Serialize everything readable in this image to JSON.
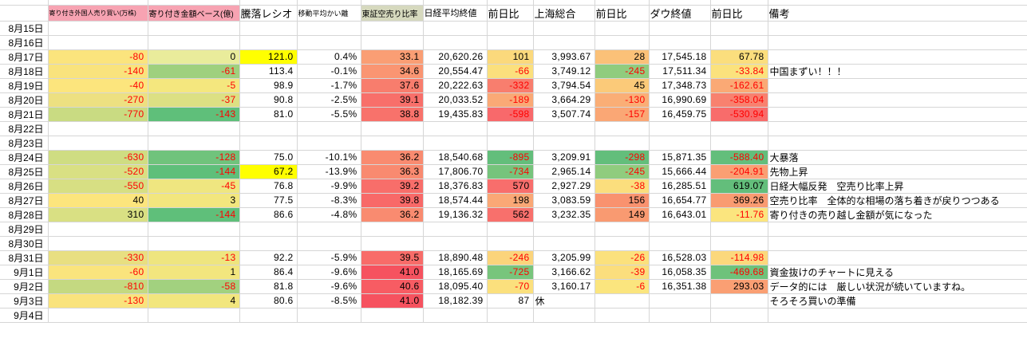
{
  "colors": {
    "gridline": "#D6D6D6",
    "negative_text": "#FF0000",
    "header_pink": "#F7A3B2",
    "header_olive": "#D6D9BE",
    "highlight_yellow": "#FFFF00",
    "scale_green": "#63BE7B",
    "scale_red": "#F8696B"
  },
  "columns": [
    {
      "key": "date",
      "label": ""
    },
    {
      "key": "foreign-open-trades",
      "label": "寄り付き外国人売り買い(万株)",
      "header_bg": "#F7A3B2"
    },
    {
      "key": "open-amount-base",
      "label": "寄り付き金額ベース(億)",
      "header_bg": "#F7A3B2"
    },
    {
      "key": "advance-decline-ratio",
      "label": "騰落レシオ"
    },
    {
      "key": "ma-deviation",
      "label": "移動平均かい離"
    },
    {
      "key": "tse-short-ratio",
      "label": "東証空売り比率",
      "header_bg": "#D6D9BE"
    },
    {
      "key": "nikkei-close",
      "label": "日経平均終値"
    },
    {
      "key": "nikkei-change",
      "label": "前日比"
    },
    {
      "key": "shanghai-composite",
      "label": "上海総合"
    },
    {
      "key": "shanghai-change",
      "label": "前日比"
    },
    {
      "key": "dow-close",
      "label": "ダウ終値"
    },
    {
      "key": "dow-change",
      "label": "前日比"
    },
    {
      "key": "remarks",
      "label": "備考"
    }
  ],
  "rows": [
    {
      "date": "8月15日",
      "cells": []
    },
    {
      "date": "8月16日",
      "cells": []
    },
    {
      "date": "8月17日",
      "cells": [
        {
          "v": "-80",
          "bg": "#FBE47D",
          "neg": true
        },
        {
          "v": "0",
          "bg": "#E9EC9B"
        },
        {
          "v": "121.0",
          "bg": "#FFFF00"
        },
        {
          "v": "0.4%"
        },
        {
          "v": "33.1",
          "bg": "#FA9E74"
        },
        {
          "v": "20,620.26"
        },
        {
          "v": "101",
          "bg": "#FBD97C"
        },
        {
          "v": "3,993.67"
        },
        {
          "v": "28",
          "bg": "#FBC178"
        },
        {
          "v": "17,545.18"
        },
        {
          "v": "67.78",
          "bg": "#FBDE7D"
        },
        {
          "v": ""
        }
      ]
    },
    {
      "date": "8月18日",
      "cells": [
        {
          "v": "-140",
          "bg": "#F9E37D",
          "neg": true
        },
        {
          "v": "-61",
          "bg": "#9FD07E",
          "neg": true
        },
        {
          "v": "113.4"
        },
        {
          "v": "-0.1%"
        },
        {
          "v": "34.6",
          "bg": "#FA9572"
        },
        {
          "v": "20,554.47"
        },
        {
          "v": "-66",
          "bg": "#FBE07D",
          "neg": true
        },
        {
          "v": "3,749.12"
        },
        {
          "v": "-245",
          "bg": "#90CC7E",
          "neg": true
        },
        {
          "v": "17,511.34"
        },
        {
          "v": "-33.84",
          "bg": "#FBE27D",
          "neg": true
        },
        {
          "v": "中国まずい！！！"
        }
      ]
    },
    {
      "date": "8月19日",
      "cells": [
        {
          "v": "-40",
          "bg": "#FCE57D",
          "neg": true
        },
        {
          "v": "-5",
          "bg": "#F4E77E",
          "neg": true
        },
        {
          "v": "98.9"
        },
        {
          "v": "-1.7%"
        },
        {
          "v": "37.6",
          "bg": "#F87D6D"
        },
        {
          "v": "20,222.63"
        },
        {
          "v": "-332",
          "bg": "#F87E6E",
          "neg": true
        },
        {
          "v": "3,794.54"
        },
        {
          "v": "45",
          "bg": "#FBCA79"
        },
        {
          "v": "17,348.73"
        },
        {
          "v": "-162.61",
          "bg": "#FAA975",
          "neg": true
        },
        {
          "v": ""
        }
      ]
    },
    {
      "date": "8月20日",
      "cells": [
        {
          "v": "-270",
          "bg": "#EDE081",
          "neg": true
        },
        {
          "v": "-37",
          "bg": "#DCE083",
          "neg": true
        },
        {
          "v": "90.8"
        },
        {
          "v": "-2.5%"
        },
        {
          "v": "39.1",
          "bg": "#F86F6A"
        },
        {
          "v": "20,033.52"
        },
        {
          "v": "-189",
          "bg": "#FAA976",
          "neg": true
        },
        {
          "v": "3,664.29"
        },
        {
          "v": "-130",
          "bg": "#FAAE76",
          "neg": true
        },
        {
          "v": "16,990.69"
        },
        {
          "v": "-358.04",
          "bg": "#F8816F",
          "neg": true
        },
        {
          "v": ""
        }
      ]
    },
    {
      "date": "8月21日",
      "cells": [
        {
          "v": "-770",
          "bg": "#C9DB82",
          "neg": true
        },
        {
          "v": "-143",
          "bg": "#5FBF7A",
          "neg": true
        },
        {
          "v": "81.0"
        },
        {
          "v": "-5.5%"
        },
        {
          "v": "38.8",
          "bg": "#F8726B"
        },
        {
          "v": "19,435.83"
        },
        {
          "v": "-598",
          "bg": "#F8696B",
          "neg": true
        },
        {
          "v": "3,507.74"
        },
        {
          "v": "-157",
          "bg": "#FAA775",
          "neg": true
        },
        {
          "v": "16,459.75"
        },
        {
          "v": "-530.94",
          "bg": "#F86C6B",
          "neg": true
        },
        {
          "v": ""
        }
      ]
    },
    {
      "date": "8月22日",
      "cells": []
    },
    {
      "date": "8月23日",
      "cells": []
    },
    {
      "date": "8月24日",
      "cells": [
        {
          "v": "-630",
          "bg": "#CFDD82",
          "neg": true
        },
        {
          "v": "-128",
          "bg": "#70C37C",
          "neg": true
        },
        {
          "v": "75.0"
        },
        {
          "v": "-10.1%"
        },
        {
          "v": "36.2",
          "bg": "#F98B70"
        },
        {
          "v": "18,540.68"
        },
        {
          "v": "-895",
          "bg": "#63BE7B",
          "neg": true
        },
        {
          "v": "3,209.91"
        },
        {
          "v": "-298",
          "bg": "#63BE7B",
          "neg": true
        },
        {
          "v": "15,871.35"
        },
        {
          "v": "-588.40",
          "bg": "#63BE7B",
          "neg": true
        },
        {
          "v": "大暴落"
        }
      ]
    },
    {
      "date": "8月25日",
      "cells": [
        {
          "v": "-520",
          "bg": "#D9E083",
          "neg": true
        },
        {
          "v": "-144",
          "bg": "#5FBF7A",
          "neg": true
        },
        {
          "v": "67.2",
          "bg": "#FFFF00"
        },
        {
          "v": "-13.9%"
        },
        {
          "v": "36.3",
          "bg": "#F98A70"
        },
        {
          "v": "17,806.70"
        },
        {
          "v": "-734",
          "bg": "#76C47C",
          "neg": true
        },
        {
          "v": "2,965.14"
        },
        {
          "v": "-245",
          "bg": "#90CC7E",
          "neg": true
        },
        {
          "v": "15,666.44"
        },
        {
          "v": "-204.91",
          "bg": "#FA9F73",
          "neg": true
        },
        {
          "v": "先物上昇"
        }
      ]
    },
    {
      "date": "8月26日",
      "cells": [
        {
          "v": "-550",
          "bg": "#D7DF83",
          "neg": true
        },
        {
          "v": "-45",
          "bg": "#EFE680",
          "neg": true
        },
        {
          "v": "76.8"
        },
        {
          "v": "-9.9%"
        },
        {
          "v": "39.2",
          "bg": "#F86E6A"
        },
        {
          "v": "18,376.83"
        },
        {
          "v": "570",
          "bg": "#F86E6C"
        },
        {
          "v": "2,927.29"
        },
        {
          "v": "-38",
          "bg": "#FBDE7D",
          "neg": true
        },
        {
          "v": "16,285.51"
        },
        {
          "v": "619.07",
          "bg": "#63BE7B"
        },
        {
          "v": "日経大幅反発　空売り比率上昇"
        }
      ]
    },
    {
      "date": "8月27日",
      "cells": [
        {
          "v": "40",
          "bg": "#FCE57D"
        },
        {
          "v": "3",
          "bg": "#F2E67E"
        },
        {
          "v": "77.5"
        },
        {
          "v": "-8.3%"
        },
        {
          "v": "39.8",
          "bg": "#F86968"
        },
        {
          "v": "18,574.44"
        },
        {
          "v": "198",
          "bg": "#FAA876"
        },
        {
          "v": "3,083.59"
        },
        {
          "v": "156",
          "bg": "#F9926F"
        },
        {
          "v": "16,654.77"
        },
        {
          "v": "369.26",
          "bg": "#F99B71"
        },
        {
          "v": "空売り比率　全体的な相場の落ち着きが戻りつつある"
        }
      ]
    },
    {
      "date": "8月28日",
      "cells": [
        {
          "v": "310",
          "bg": "#D9E083"
        },
        {
          "v": "-144",
          "bg": "#5FBF7A",
          "neg": true
        },
        {
          "v": "86.6"
        },
        {
          "v": "-4.8%"
        },
        {
          "v": "36.2",
          "bg": "#F98B70"
        },
        {
          "v": "19,136.32"
        },
        {
          "v": "562",
          "bg": "#F8706C"
        },
        {
          "v": "3,232.35"
        },
        {
          "v": "149",
          "bg": "#F99A71"
        },
        {
          "v": "16,643.01"
        },
        {
          "v": "-11.76",
          "bg": "#FBE57E",
          "neg": true
        },
        {
          "v": "寄り付きの売り越し金額が気になった"
        }
      ]
    },
    {
      "date": "8月29日",
      "cells": []
    },
    {
      "date": "8月30日",
      "cells": []
    },
    {
      "date": "8月31日",
      "cells": [
        {
          "v": "-330",
          "bg": "#E8DF81",
          "neg": true
        },
        {
          "v": "-13",
          "bg": "#EEE57F",
          "neg": true
        },
        {
          "v": "92.2"
        },
        {
          "v": "-5.9%"
        },
        {
          "v": "39.5",
          "bg": "#F86C69"
        },
        {
          "v": "18,890.48"
        },
        {
          "v": "-246",
          "bg": "#FBD47B",
          "neg": true
        },
        {
          "v": "3,205.99"
        },
        {
          "v": "-26",
          "bg": "#FBE17D",
          "neg": true
        },
        {
          "v": "16,528.03"
        },
        {
          "v": "-114.98",
          "bg": "#FBD87C",
          "neg": true
        },
        {
          "v": ""
        }
      ]
    },
    {
      "date": "9月1日",
      "cells": [
        {
          "v": "-60",
          "bg": "#FAE47D",
          "neg": true
        },
        {
          "v": "1",
          "bg": "#F2E67E"
        },
        {
          "v": "86.4"
        },
        {
          "v": "-9.6%"
        },
        {
          "v": "41.0",
          "bg": "#F6525F"
        },
        {
          "v": "18,165.69"
        },
        {
          "v": "-725",
          "bg": "#78C57C",
          "neg": true
        },
        {
          "v": "3,166.62"
        },
        {
          "v": "-39",
          "bg": "#FBDE7D",
          "neg": true
        },
        {
          "v": "16,058.35"
        },
        {
          "v": "-469.68",
          "bg": "#6EC27B",
          "neg": true
        },
        {
          "v": "資金抜けのチャートに見える"
        }
      ]
    },
    {
      "date": "9月2日",
      "cells": [
        {
          "v": "-810",
          "bg": "#C4D981",
          "neg": true
        },
        {
          "v": "-58",
          "bg": "#A2D17F",
          "neg": true
        },
        {
          "v": "81.8"
        },
        {
          "v": "-9.6%"
        },
        {
          "v": "40.6",
          "bg": "#F75C63"
        },
        {
          "v": "18,095.40"
        },
        {
          "v": "-70",
          "bg": "#FBE07D",
          "neg": true
        },
        {
          "v": "3,160.17"
        },
        {
          "v": "-6",
          "bg": "#FBE57E",
          "neg": true
        },
        {
          "v": "16,351.38"
        },
        {
          "v": "293.03",
          "bg": "#FA9F73"
        },
        {
          "v": "データ的には　厳しい状況が続いていますね。"
        }
      ]
    },
    {
      "date": "9月3日",
      "cells": [
        {
          "v": "-130",
          "bg": "#F9E37D",
          "neg": true
        },
        {
          "v": "4",
          "bg": "#F2E67E"
        },
        {
          "v": "80.6"
        },
        {
          "v": "-8.5%"
        },
        {
          "v": "41.0",
          "bg": "#F6525F"
        },
        {
          "v": "18,182.39"
        },
        {
          "v": "87"
        },
        {
          "v": "休",
          "align": "left"
        },
        {
          "v": ""
        },
        {
          "v": ""
        },
        {
          "v": ""
        },
        {
          "v": "そろそろ買いの準備"
        }
      ]
    },
    {
      "date": "9月4日",
      "cells": []
    }
  ]
}
